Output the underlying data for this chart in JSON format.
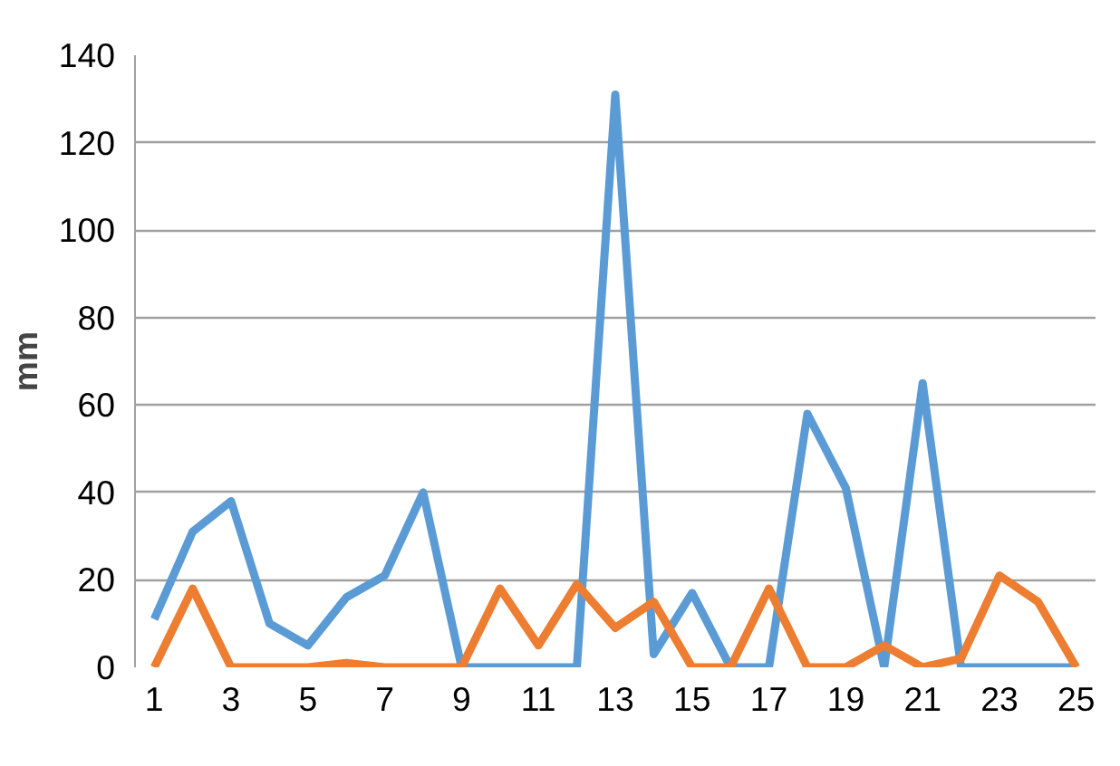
{
  "chart_data": {
    "type": "line",
    "ylabel": "mm",
    "x": [
      1,
      2,
      3,
      4,
      5,
      6,
      7,
      8,
      9,
      10,
      11,
      12,
      13,
      14,
      15,
      16,
      17,
      18,
      19,
      20,
      21,
      22,
      23,
      24,
      25
    ],
    "series": [
      {
        "color": "#5b9bd5",
        "values": [
          11,
          31,
          38,
          10,
          5,
          16,
          21,
          40,
          0,
          0,
          0,
          0,
          131,
          3,
          17,
          0,
          0,
          58,
          41,
          0,
          65,
          0,
          0,
          0,
          0
        ]
      },
      {
        "color": "#ed7d31",
        "values": [
          0,
          18,
          0,
          0,
          0,
          1,
          0,
          0,
          0,
          18,
          5,
          19,
          9,
          15,
          0,
          0,
          18,
          0,
          0,
          5,
          0,
          2,
          21,
          15,
          0
        ]
      }
    ],
    "xlim": [
      0.5,
      25.5
    ],
    "xticks": [
      1,
      3,
      5,
      7,
      9,
      11,
      13,
      15,
      17,
      19,
      21,
      23,
      25
    ],
    "ylim": [
      0,
      140
    ],
    "yticks": [
      0,
      20,
      40,
      60,
      80,
      100,
      120,
      140
    ],
    "grid": "y",
    "marker": "none",
    "line_style": "solid"
  }
}
